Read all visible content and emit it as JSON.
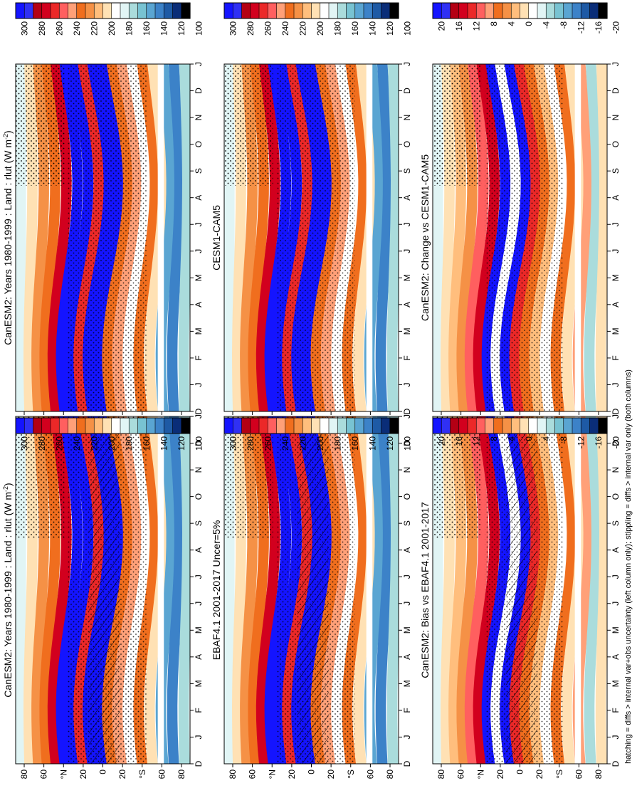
{
  "footer": "hatching = diffs > internal var+obs uncertainty (left column only); stippling = diffs > internal var only (both columns)",
  "months": [
    "D",
    "J",
    "F",
    "M",
    "A",
    "M",
    "J",
    "J",
    "A",
    "S",
    "O",
    "N",
    "D",
    "J"
  ],
  "lat_ticks": [
    "80",
    "60",
    "°N",
    "20",
    "0",
    "20",
    "°S",
    "60",
    "80"
  ],
  "abs_colorbar_labels": [
    "300",
    "280",
    "260",
    "240",
    "220",
    "200",
    "180",
    "160",
    "140",
    "120",
    "100"
  ],
  "abs_colorbar_colors": [
    "#1414ff",
    "#3030f4",
    "#b40014",
    "#d2001e",
    "#eb2828",
    "#ff5f5f",
    "#ffa078",
    "#f06e1e",
    "#f59146",
    "#ffbe7d",
    "#ffe1b4",
    "#ffffff",
    "#e1f5f5",
    "#aadcdc",
    "#78c3d2",
    "#5aa5d2",
    "#3c82c8",
    "#1e5aa5",
    "#0a2d78",
    "#000000"
  ],
  "diff_colorbar_labels": [
    "20",
    "16",
    "12",
    "8",
    "4",
    "0",
    "-4",
    "-8",
    "-12",
    "-16",
    "-20"
  ],
  "diff_colorbar_colors": [
    "#1414ff",
    "#3030f4",
    "#b40014",
    "#d2001e",
    "#eb2828",
    "#ff5f5f",
    "#ffa078",
    "#f06e1e",
    "#f59146",
    "#ffbe7d",
    "#ffe1b4",
    "#ffffff",
    "#e1f5f5",
    "#aadcdc",
    "#78c3d2",
    "#5aa5d2",
    "#3c82c8",
    "#1e5aa5",
    "#0a2d78",
    "#000000"
  ],
  "panels": [
    {
      "id": "p1",
      "title": "CanESM2: Years 1980-1999 : Land : rlut (W m",
      "title_sup": "-2",
      "title_tail": ")",
      "kind": "abs",
      "hatch": true
    },
    {
      "id": "p2",
      "title": "CanESM2: Years 1980-1999 : Land : rlut (W m",
      "title_sup": "-2",
      "title_tail": ")",
      "kind": "abs",
      "hatch": false
    },
    {
      "id": "p3",
      "title": "EBAF4.1 2001-2017 Uncer=5%",
      "kind": "abs",
      "hatch": true
    },
    {
      "id": "p4",
      "title": "CESM1-CAM5",
      "kind": "abs",
      "hatch": false
    },
    {
      "id": "p5",
      "title": "CanESM2: Bias vs EBAF4.1 2001-2017",
      "kind": "diff",
      "hatch": true
    },
    {
      "id": "p6",
      "title": "CanESM2: Change vs CESM1-CAM5",
      "kind": "diff",
      "hatch": false
    }
  ],
  "chart_data": {
    "type": "heatmap",
    "variable": "rlut",
    "units": "W m-2",
    "x_axis": "latitude",
    "y_axis": "month",
    "abs_levels": [
      300,
      280,
      260,
      240,
      220,
      200,
      180,
      160,
      140,
      120,
      100
    ],
    "diff_levels": [
      20,
      16,
      12,
      8,
      4,
      0,
      -4,
      -8,
      -12,
      -16,
      -20
    ]
  }
}
